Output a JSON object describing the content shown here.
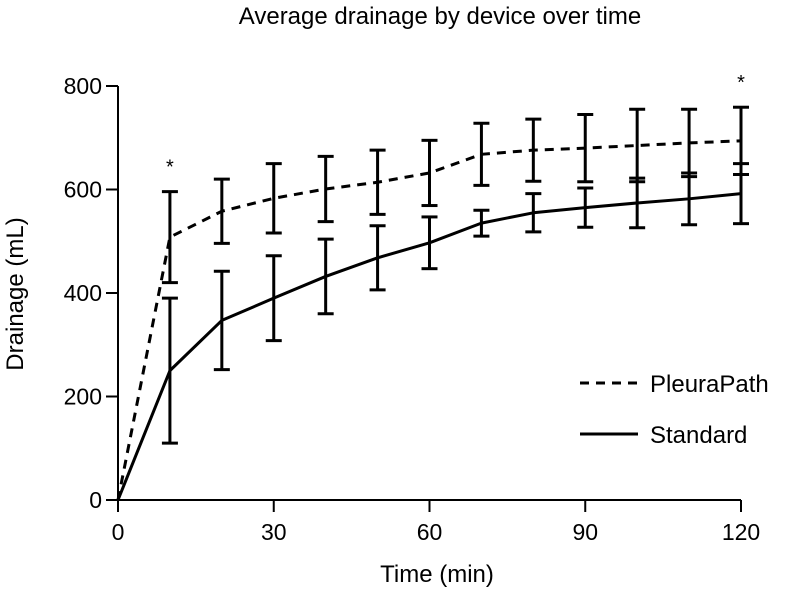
{
  "chart_data": {
    "type": "line",
    "title": "Average drainage by device over time",
    "xlabel": "Time (min)",
    "ylabel": "Drainage (mL)",
    "xlim": [
      0,
      120
    ],
    "ylim": [
      0,
      800
    ],
    "xticks": [
      0,
      30,
      60,
      90,
      120
    ],
    "yticks": [
      0,
      200,
      400,
      600,
      800
    ],
    "grid": false,
    "legend_position": "right",
    "x": [
      0,
      10,
      20,
      30,
      40,
      50,
      60,
      70,
      80,
      90,
      100,
      110,
      120
    ],
    "series": [
      {
        "name": "PleuraPath",
        "line_style": "dashed",
        "values": [
          0,
          508,
          558,
          583,
          601,
          614,
          632,
          668,
          676,
          680,
          685,
          690,
          694
        ],
        "error": [
          0,
          88,
          62,
          67,
          63,
          62,
          63,
          60,
          60,
          65,
          70,
          65,
          65
        ],
        "color": "#000000"
      },
      {
        "name": "Standard",
        "line_style": "solid",
        "values": [
          0,
          250,
          347,
          390,
          432,
          468,
          497,
          535,
          555,
          565,
          574,
          582,
          592
        ],
        "error": [
          0,
          140,
          95,
          82,
          72,
          62,
          50,
          25,
          37,
          38,
          48,
          50,
          58
        ],
        "color": "#000000"
      }
    ],
    "annotations": [
      {
        "text": "*",
        "x": 10
      },
      {
        "text": "*",
        "x": 120
      }
    ]
  }
}
